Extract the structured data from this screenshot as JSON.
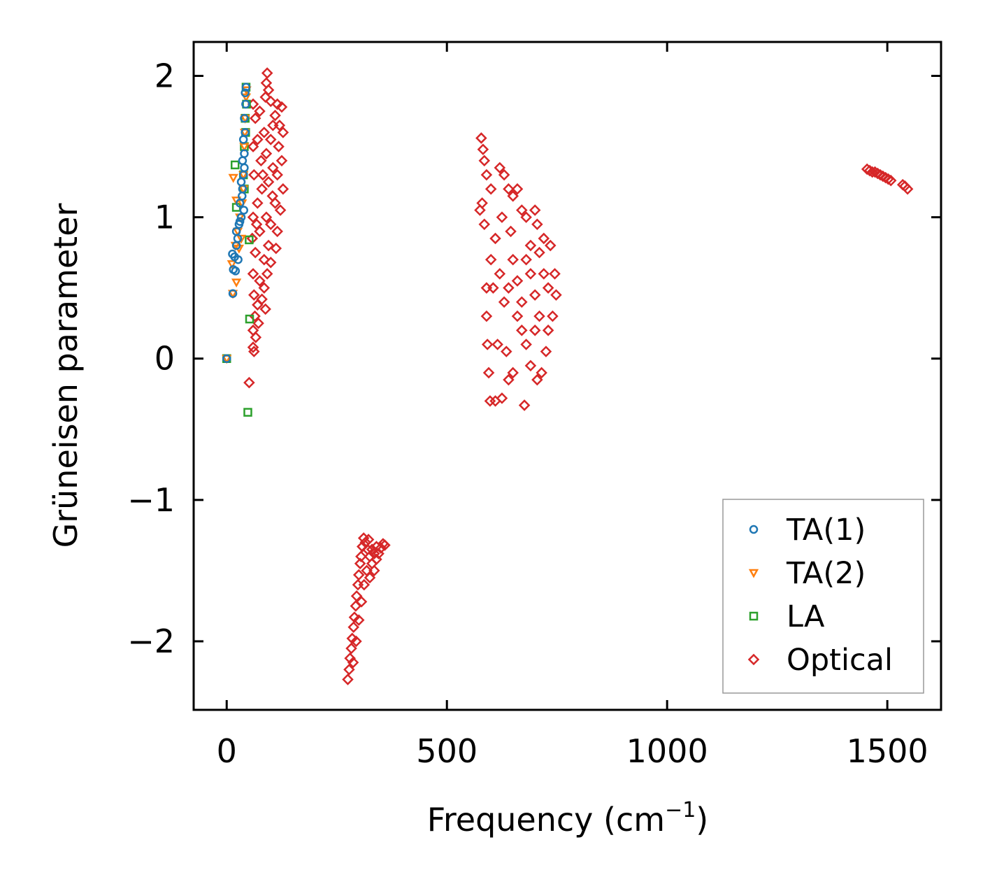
{
  "chart_data": {
    "type": "scatter",
    "title": "",
    "xlabel": "Frequency (cm",
    "xlabel_sup": "−1",
    "xlabel_end": ")",
    "ylabel": "Grüneisen parameter",
    "xlim": [
      -75,
      1622
    ],
    "ylim": [
      -2.485,
      2.24
    ],
    "xticks": [
      0,
      500,
      1000,
      1500
    ],
    "xtick_labels": [
      "0",
      "500",
      "1000",
      "1500"
    ],
    "yticks": [
      -2,
      -1,
      0,
      1,
      2
    ],
    "ytick_labels": [
      "−2",
      "−1",
      "0",
      "1",
      "2"
    ],
    "grid": false,
    "legend_position": "bottom-right",
    "series": [
      {
        "name": "Optical",
        "marker": "diamond",
        "color": "#d62728",
        "points": [
          [
            92,
            2.02
          ],
          [
            90,
            1.95
          ],
          [
            95,
            1.9
          ],
          [
            88,
            1.85
          ],
          [
            100,
            1.82
          ],
          [
            115,
            1.8
          ],
          [
            125,
            1.78
          ],
          [
            60,
            1.8
          ],
          [
            65,
            1.7
          ],
          [
            75,
            1.75
          ],
          [
            110,
            1.72
          ],
          [
            120,
            1.65
          ],
          [
            128,
            1.6
          ],
          [
            85,
            1.6
          ],
          [
            70,
            1.55
          ],
          [
            100,
            1.55
          ],
          [
            60,
            1.5
          ],
          [
            118,
            1.5
          ],
          [
            90,
            1.45
          ],
          [
            78,
            1.4
          ],
          [
            125,
            1.4
          ],
          [
            105,
            1.35
          ],
          [
            62,
            1.3
          ],
          [
            115,
            1.3
          ],
          [
            95,
            1.25
          ],
          [
            80,
            1.2
          ],
          [
            128,
            1.2
          ],
          [
            70,
            1.1
          ],
          [
            110,
            1.1
          ],
          [
            122,
            1.05
          ],
          [
            60,
            1.0
          ],
          [
            90,
            1.0
          ],
          [
            100,
            0.95
          ],
          [
            75,
            0.9
          ],
          [
            115,
            0.9
          ],
          [
            58,
            0.85
          ],
          [
            95,
            0.8
          ],
          [
            112,
            0.78
          ],
          [
            65,
            0.75
          ],
          [
            85,
            0.7
          ],
          [
            100,
            0.68
          ],
          [
            60,
            0.6
          ],
          [
            92,
            0.6
          ],
          [
            75,
            0.55
          ],
          [
            85,
            0.5
          ],
          [
            62,
            0.45
          ],
          [
            80,
            0.42
          ],
          [
            70,
            0.38
          ],
          [
            88,
            0.35
          ],
          [
            64,
            0.3
          ],
          [
            72,
            0.25
          ],
          [
            60,
            0.2
          ],
          [
            66,
            0.15
          ],
          [
            60,
            0.08
          ],
          [
            62,
            0.05
          ],
          [
            51,
            -0.17
          ],
          [
            105,
            1.65
          ],
          [
            82,
            1.3
          ],
          [
            68,
            0.95
          ],
          [
            104,
            1.15
          ],
          [
            578,
            1.56
          ],
          [
            582,
            1.48
          ],
          [
            585,
            1.4
          ],
          [
            590,
            1.3
          ],
          [
            580,
            1.1
          ],
          [
            575,
            1.05
          ],
          [
            585,
            0.95
          ],
          [
            600,
            1.2
          ],
          [
            620,
            1.35
          ],
          [
            630,
            1.3
          ],
          [
            640,
            1.2
          ],
          [
            650,
            1.15
          ],
          [
            660,
            1.2
          ],
          [
            670,
            1.05
          ],
          [
            680,
            1.0
          ],
          [
            700,
            1.05
          ],
          [
            705,
            0.95
          ],
          [
            720,
            0.85
          ],
          [
            735,
            0.8
          ],
          [
            745,
            0.6
          ],
          [
            748,
            0.45
          ],
          [
            740,
            0.3
          ],
          [
            730,
            0.2
          ],
          [
            725,
            0.05
          ],
          [
            715,
            -0.1
          ],
          [
            705,
            -0.15
          ],
          [
            690,
            -0.05
          ],
          [
            680,
            0.1
          ],
          [
            670,
            0.2
          ],
          [
            660,
            0.3
          ],
          [
            650,
            -0.1
          ],
          [
            640,
            -0.15
          ],
          [
            625,
            -0.28
          ],
          [
            610,
            -0.3
          ],
          [
            598,
            -0.3
          ],
          [
            595,
            -0.1
          ],
          [
            592,
            0.1
          ],
          [
            590,
            0.3
          ],
          [
            590,
            0.5
          ],
          [
            600,
            0.7
          ],
          [
            610,
            0.85
          ],
          [
            620,
            0.6
          ],
          [
            630,
            0.4
          ],
          [
            640,
            0.5
          ],
          [
            650,
            0.7
          ],
          [
            660,
            0.55
          ],
          [
            670,
            0.4
          ],
          [
            680,
            0.7
          ],
          [
            690,
            0.6
          ],
          [
            700,
            0.45
          ],
          [
            710,
            0.3
          ],
          [
            720,
            0.6
          ],
          [
            730,
            0.5
          ],
          [
            690,
            0.8
          ],
          [
            710,
            0.75
          ],
          [
            615,
            0.1
          ],
          [
            605,
            0.5
          ],
          [
            625,
            1.0
          ],
          [
            645,
            0.9
          ],
          [
            676,
            -0.33
          ],
          [
            635,
            0.05
          ],
          [
            700,
            0.2
          ],
          [
            275,
            -2.27
          ],
          [
            278,
            -2.2
          ],
          [
            280,
            -2.12
          ],
          [
            283,
            -2.05
          ],
          [
            285,
            -1.98
          ],
          [
            288,
            -1.9
          ],
          [
            290,
            -1.83
          ],
          [
            293,
            -1.75
          ],
          [
            295,
            -1.68
          ],
          [
            298,
            -1.6
          ],
          [
            300,
            -1.53
          ],
          [
            303,
            -1.45
          ],
          [
            305,
            -1.4
          ],
          [
            308,
            -1.33
          ],
          [
            311,
            -1.27
          ],
          [
            315,
            -1.3
          ],
          [
            320,
            -1.35
          ],
          [
            325,
            -1.4
          ],
          [
            330,
            -1.45
          ],
          [
            335,
            -1.5
          ],
          [
            340,
            -1.42
          ],
          [
            345,
            -1.38
          ],
          [
            350,
            -1.34
          ],
          [
            355,
            -1.31
          ],
          [
            359,
            -1.32
          ],
          [
            318,
            -1.5
          ],
          [
            312,
            -1.6
          ],
          [
            306,
            -1.72
          ],
          [
            300,
            -1.85
          ],
          [
            294,
            -2.0
          ],
          [
            287,
            -2.15
          ],
          [
            322,
            -1.28
          ],
          [
            330,
            -1.35
          ],
          [
            340,
            -1.33
          ],
          [
            325,
            -1.55
          ],
          [
            335,
            -1.38
          ],
          [
            1454,
            1.34
          ],
          [
            1460,
            1.33
          ],
          [
            1466,
            1.32
          ],
          [
            1472,
            1.32
          ],
          [
            1478,
            1.31
          ],
          [
            1484,
            1.3
          ],
          [
            1490,
            1.29
          ],
          [
            1496,
            1.28
          ],
          [
            1502,
            1.27
          ],
          [
            1508,
            1.26
          ],
          [
            1535,
            1.23
          ],
          [
            1540,
            1.22
          ],
          [
            1546,
            1.2
          ]
        ]
      },
      {
        "name": "LA",
        "marker": "square",
        "color": "#2ca02c",
        "points": [
          [
            0,
            0
          ],
          [
            19,
            1.37
          ],
          [
            48,
            -0.38
          ],
          [
            52,
            0.28
          ],
          [
            51,
            0.84
          ],
          [
            22,
            1.07
          ],
          [
            40,
            1.5
          ],
          [
            42,
            1.7
          ],
          [
            44,
            1.92
          ],
          [
            38,
            1.3
          ],
          [
            45,
            1.8
          ],
          [
            40,
            1.2
          ],
          [
            43,
            1.6
          ]
        ]
      },
      {
        "name": "TA(2)",
        "marker": "triangle-down",
        "color": "#ff7f0e",
        "points": [
          [
            0,
            0
          ],
          [
            14,
            0.46
          ],
          [
            12,
            0.67
          ],
          [
            22,
            0.54
          ],
          [
            20,
            0.8
          ],
          [
            25,
            0.9
          ],
          [
            15,
            1.28
          ],
          [
            22,
            1.12
          ],
          [
            30,
            1.0
          ],
          [
            35,
            1.1
          ],
          [
            38,
            1.3
          ],
          [
            40,
            1.5
          ],
          [
            42,
            1.7
          ],
          [
            44,
            1.85
          ],
          [
            45,
            1.9
          ],
          [
            38,
            1.2
          ],
          [
            41,
            1.6
          ],
          [
            28,
            0.78
          ],
          [
            33,
            0.85
          ]
        ]
      },
      {
        "name": "TA(1)",
        "marker": "circle",
        "color": "#1f77b4",
        "points": [
          [
            0,
            0
          ],
          [
            14,
            0.46
          ],
          [
            15,
            0.63
          ],
          [
            18,
            0.72
          ],
          [
            20,
            0.62
          ],
          [
            22,
            0.8
          ],
          [
            25,
            0.85
          ],
          [
            22,
            0.9
          ],
          [
            28,
            0.95
          ],
          [
            30,
            0.97
          ],
          [
            33,
            1.0
          ],
          [
            30,
            1.1
          ],
          [
            35,
            1.15
          ],
          [
            33,
            1.25
          ],
          [
            38,
            1.3
          ],
          [
            36,
            1.4
          ],
          [
            40,
            1.45
          ],
          [
            38,
            1.55
          ],
          [
            42,
            1.6
          ],
          [
            40,
            1.7
          ],
          [
            43,
            1.8
          ],
          [
            42,
            1.88
          ],
          [
            44,
            1.92
          ],
          [
            36,
            1.2
          ],
          [
            40,
            1.35
          ],
          [
            39,
            1.05
          ],
          [
            26,
            0.7
          ],
          [
            13,
            0.74
          ]
        ]
      }
    ],
    "legend": [
      {
        "label": "TA(1)",
        "marker": "circle",
        "color": "#1f77b4"
      },
      {
        "label": "TA(2)",
        "marker": "triangle-down",
        "color": "#ff7f0e"
      },
      {
        "label": "LA",
        "marker": "square",
        "color": "#2ca02c"
      },
      {
        "label": "Optical",
        "marker": "diamond",
        "color": "#d62728"
      }
    ]
  }
}
